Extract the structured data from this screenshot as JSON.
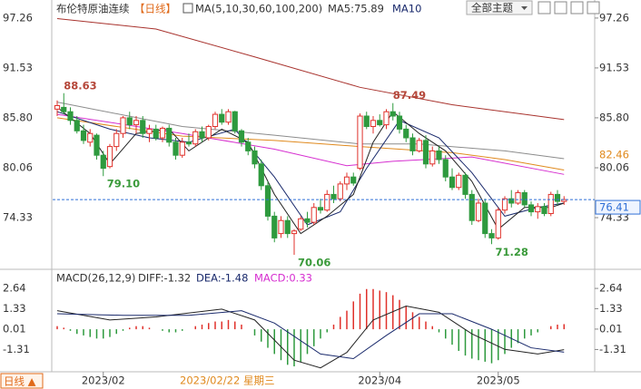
{
  "header": {
    "title": "布伦特原油连续",
    "period": "【日线】",
    "theme_button": "全部主题"
  },
  "chart_data": [
    {
      "type": "candlestick",
      "ma_legend": "MA(5,10,30,60,100,200)",
      "ma5_label": "MA5:75.89",
      "ma10_label": "MA10",
      "up_color": "#e0312b",
      "down_color": "#2e9a3e",
      "ylim": [
        68.5,
        98.5
      ],
      "yticks": [
        97.26,
        91.53,
        {
          "value": 85.8,
          "label": "85.80"
        },
        80.06,
        74.33
      ],
      "ohlc": [
        [
          86.8,
          87.8,
          86.0,
          87.2
        ],
        [
          87.0,
          88.63,
          86.2,
          86.5
        ],
        [
          86.5,
          87.0,
          85.0,
          85.5
        ],
        [
          85.5,
          86.0,
          84.0,
          84.3
        ],
        [
          84.3,
          85.0,
          82.8,
          83.2
        ],
        [
          83.0,
          84.5,
          82.5,
          84.0
        ],
        [
          83.8,
          84.0,
          81.0,
          81.5
        ],
        [
          81.5,
          82.0,
          79.1,
          80.0
        ],
        [
          80.2,
          82.8,
          80.0,
          82.5
        ],
        [
          82.5,
          84.5,
          82.0,
          84.0
        ],
        [
          84.0,
          86.0,
          83.5,
          85.8
        ],
        [
          85.8,
          86.5,
          84.5,
          85.0
        ],
        [
          85.0,
          86.0,
          84.0,
          85.5
        ],
        [
          85.5,
          86.0,
          83.5,
          84.0
        ],
        [
          84.0,
          85.0,
          83.0,
          84.5
        ],
        [
          84.5,
          85.0,
          83.2,
          83.5
        ],
        [
          83.5,
          84.8,
          83.0,
          84.6
        ],
        [
          84.6,
          85.0,
          82.5,
          83.0
        ],
        [
          83.0,
          83.5,
          81.0,
          81.5
        ],
        [
          81.5,
          83.5,
          81.2,
          83.0
        ],
        [
          83.0,
          84.0,
          82.5,
          82.8
        ],
        [
          82.8,
          84.5,
          82.5,
          84.2
        ],
        [
          84.2,
          84.8,
          83.0,
          83.5
        ],
        [
          83.5,
          85.0,
          83.2,
          84.8
        ],
        [
          84.8,
          86.5,
          84.5,
          86.2
        ],
        [
          86.2,
          86.8,
          85.0,
          85.3
        ],
        [
          85.3,
          86.8,
          85.0,
          86.5
        ],
        [
          86.5,
          86.6,
          84.0,
          84.3
        ],
        [
          84.3,
          84.5,
          82.5,
          83.0
        ],
        [
          83.0,
          83.5,
          81.5,
          82.0
        ],
        [
          82.0,
          82.5,
          80.0,
          80.5
        ],
        [
          80.5,
          81.0,
          77.5,
          78.0
        ],
        [
          78.0,
          78.5,
          74.0,
          74.5
        ],
        [
          74.5,
          75.0,
          71.5,
          72.0
        ],
        [
          72.5,
          74.5,
          72.0,
          74.0
        ],
        [
          74.0,
          74.5,
          72.0,
          72.5
        ],
        [
          72.5,
          73.0,
          70.06,
          72.8
        ],
        [
          73.0,
          74.5,
          72.8,
          74.2
        ],
        [
          74.2,
          75.0,
          73.2,
          73.8
        ],
        [
          73.8,
          76.0,
          73.5,
          75.5
        ],
        [
          75.5,
          76.5,
          74.8,
          75.2
        ],
        [
          75.2,
          77.5,
          75.0,
          77.0
        ],
        [
          77.0,
          78.0,
          76.0,
          76.5
        ],
        [
          76.5,
          78.5,
          76.2,
          78.2
        ],
        [
          78.2,
          79.5,
          77.5,
          79.0
        ],
        [
          79.0,
          79.5,
          78.0,
          78.3
        ],
        [
          80.0,
          86.3,
          79.8,
          86.0
        ],
        [
          86.0,
          86.5,
          84.5,
          84.8
        ],
        [
          84.8,
          86.0,
          84.0,
          85.5
        ],
        [
          85.5,
          86.2,
          84.8,
          85.0
        ],
        [
          85.0,
          86.8,
          84.5,
          86.5
        ],
        [
          86.5,
          87.49,
          85.5,
          86.0
        ],
        [
          86.0,
          86.5,
          84.0,
          84.5
        ],
        [
          84.5,
          85.0,
          83.0,
          83.5
        ],
        [
          83.5,
          84.0,
          81.5,
          82.0
        ],
        [
          82.0,
          83.5,
          81.8,
          83.2
        ],
        [
          83.2,
          83.8,
          80.0,
          80.5
        ],
        [
          80.5,
          82.5,
          80.2,
          82.0
        ],
        [
          82.0,
          82.5,
          80.5,
          81.0
        ],
        [
          81.0,
          81.5,
          78.5,
          79.0
        ],
        [
          79.0,
          80.0,
          77.5,
          77.8
        ],
        [
          77.8,
          79.5,
          77.5,
          79.2
        ],
        [
          79.2,
          79.5,
          76.5,
          77.0
        ],
        [
          77.0,
          77.5,
          73.5,
          74.0
        ],
        [
          74.0,
          76.5,
          73.8,
          76.0
        ],
        [
          76.0,
          76.5,
          72.0,
          72.5
        ],
        [
          72.5,
          73.0,
          71.28,
          72.0
        ],
        [
          72.0,
          75.5,
          71.8,
          75.2
        ],
        [
          75.2,
          76.8,
          74.8,
          76.5
        ],
        [
          76.5,
          77.5,
          75.5,
          76.0
        ],
        [
          76.0,
          77.5,
          75.8,
          77.2
        ],
        [
          77.2,
          77.5,
          75.5,
          75.8
        ],
        [
          75.8,
          76.2,
          74.5,
          75.0
        ],
        [
          75.0,
          76.0,
          74.2,
          75.6
        ],
        [
          75.6,
          76.0,
          74.5,
          74.8
        ],
        [
          74.8,
          77.3,
          74.5,
          77.0
        ],
        [
          77.0,
          77.5,
          75.8,
          76.2
        ],
        [
          76.2,
          76.8,
          75.8,
          76.41
        ]
      ],
      "annotations": [
        {
          "index": 1,
          "value": 88.63,
          "kind": "high"
        },
        {
          "index": 51,
          "value": 87.49,
          "kind": "high"
        },
        {
          "index": 7,
          "value": 79.1,
          "label": "79.10",
          "kind": "low"
        },
        {
          "index": 36,
          "value": 70.06,
          "kind": "low"
        },
        {
          "index": 66,
          "value": 71.28,
          "kind": "low"
        }
      ],
      "last_price": {
        "value": 76.41,
        "color": "#2f6fd6"
      },
      "marker": {
        "value": 82.46,
        "color": "#e08a1e"
      },
      "series": [
        {
          "color": "#a8322d",
          "x": [
            0,
            15,
            30,
            46,
            60,
            77
          ],
          "values": [
            97.2,
            96.0,
            92.8,
            89.3,
            87.3,
            85.6
          ]
        },
        {
          "color": "#d62fd0",
          "x": [
            0,
            19,
            33,
            44,
            51,
            63,
            77
          ],
          "values": [
            86.2,
            84.0,
            82.2,
            80.3,
            80.8,
            81.3,
            79.3
          ]
        },
        {
          "color": "#e08a1e",
          "x": [
            0,
            19,
            33,
            46,
            60,
            68,
            77
          ],
          "values": [
            85.8,
            83.7,
            83.2,
            82.5,
            81.8,
            81.0,
            79.8
          ]
        },
        {
          "color": "#8c8c8c",
          "x": [
            0,
            19,
            33,
            46,
            55,
            68,
            77
          ],
          "values": [
            87.6,
            84.8,
            83.8,
            82.8,
            82.8,
            82.0,
            81.1
          ]
        },
        {
          "color": "#1a2a6c",
          "x": [
            0,
            8,
            14,
            20,
            27,
            33,
            38,
            43,
            47,
            52,
            58,
            63,
            68,
            73,
            77
          ],
          "values": [
            86.5,
            84.5,
            83.5,
            83.0,
            84.5,
            79.0,
            73.5,
            75.0,
            80.0,
            85.5,
            83.5,
            79.5,
            74.5,
            75.5,
            76.0
          ]
        },
        {
          "color": "#222222",
          "x": [
            0,
            5,
            8,
            12,
            17,
            20,
            25,
            29,
            33,
            37,
            41,
            45,
            48,
            51,
            55,
            59,
            63,
            67,
            71,
            75,
            77
          ],
          "values": [
            87,
            84,
            80.5,
            84,
            84.5,
            82,
            84.5,
            83,
            77,
            72.5,
            74.5,
            77,
            83,
            86.5,
            84,
            82,
            78.5,
            73,
            75.5,
            75.5,
            76
          ]
        }
      ]
    },
    {
      "type": "macd",
      "title": "MACD(26,12,9)",
      "diff_label": "DIFF:-1.32",
      "dea_label": "DEA:-1.48",
      "macd_label": "MACD:0.33",
      "ylim": [
        -2.75,
        3.7
      ],
      "yticks": [
        2.64,
        1.33,
        0.01,
        -1.31
      ],
      "histogram": [
        0.2,
        0.1,
        -0.1,
        -0.3,
        -0.4,
        -0.5,
        -0.6,
        -0.6,
        -0.5,
        -0.3,
        -0.1,
        0.1,
        0.2,
        0.2,
        0.1,
        0.0,
        -0.1,
        -0.2,
        -0.2,
        -0.1,
        0.0,
        0.2,
        0.3,
        0.4,
        0.5,
        0.5,
        0.6,
        0.5,
        0.3,
        0.0,
        -0.4,
        -0.8,
        -1.2,
        -1.6,
        -2.0,
        -2.3,
        -2.4,
        -2.1,
        -1.6,
        -1.1,
        -0.6,
        -0.2,
        0.3,
        0.8,
        1.2,
        1.8,
        2.3,
        2.6,
        2.6,
        2.5,
        2.4,
        2.2,
        1.9,
        1.5,
        1.1,
        0.8,
        0.5,
        0.2,
        -0.2,
        -0.6,
        -1.0,
        -1.4,
        -1.7,
        -1.9,
        -2.0,
        -2.1,
        -2.2,
        -2.0,
        -1.6,
        -1.2,
        -0.9,
        -0.6,
        -0.4,
        -0.2,
        0.0,
        0.2,
        0.3,
        0.33
      ],
      "up_color": "#e0312b",
      "down_color": "#2e9a3e",
      "series": [
        {
          "color": "#222222",
          "x": [
            0,
            8,
            15,
            25,
            30,
            36,
            40,
            44,
            48,
            53,
            58,
            63,
            68,
            73,
            77
          ],
          "values": [
            1.2,
            0.6,
            0.8,
            1.3,
            0.6,
            -2.0,
            -2.5,
            -1.5,
            0.6,
            1.5,
            1.1,
            -0.3,
            -1.3,
            -1.6,
            -1.32
          ]
        },
        {
          "color": "#1a2a6c",
          "x": [
            0,
            10,
            20,
            28,
            33,
            40,
            45,
            50,
            55,
            60,
            66,
            72,
            77
          ],
          "values": [
            1.0,
            0.9,
            0.9,
            1.2,
            0.4,
            -1.6,
            -1.9,
            -0.4,
            1.0,
            1.0,
            0.0,
            -1.2,
            -1.48
          ]
        }
      ]
    }
  ],
  "x_axis": {
    "period_button": "日线 ▲",
    "crosshair_label": "2023/02/22 星期三",
    "ticks": [
      {
        "value": 7,
        "label": "2023/02"
      },
      {
        "value": 49,
        "label": "2023/04"
      },
      {
        "value": 67,
        "label": "2023/05"
      }
    ]
  }
}
